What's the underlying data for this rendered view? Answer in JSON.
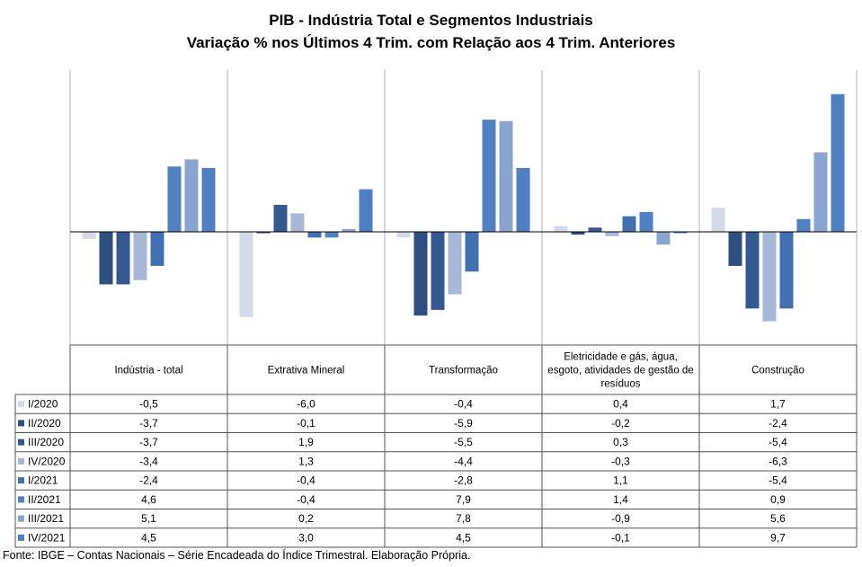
{
  "title": "PIB - Indústria Total e Segmentos Industriais",
  "subtitle": "Variação % nos Últimos 4 Trim. com Relação aos 4 Trim. Anteriores",
  "source": "Fonte: IBGE – Contas Nacionais – Série Encadeada do Índice Trimestral. Elaboração Própria.",
  "colors": [
    "#d5dae9",
    "#2f4f80",
    "#35598f",
    "#a7b7d7",
    "#4270b0",
    "#5181c1",
    "#8ba3cf",
    "#4f7fc0"
  ],
  "chart_data": {
    "type": "bar",
    "title": "PIB - Indústria Total e Segmentos Industriais",
    "subtitle": "Variação % nos Últimos 4 Trim. com Relação aos 4 Trim. Anteriores",
    "categories": [
      "Indústria - total",
      "Extrativa Mineral",
      "Transformação",
      "Eletricidade e gás, água, esgoto, atividades de gestão de resíduos",
      "Construção"
    ],
    "category_lines": [
      [
        "Indústria - total"
      ],
      [
        "Extrativa Mineral"
      ],
      [
        "Transformação"
      ],
      [
        "Eletricidade e gás, água,",
        "esgoto, atividades de gestão de",
        "resíduos"
      ],
      [
        "Construção"
      ]
    ],
    "series": [
      {
        "name": "I/2020",
        "values": [
          "-0,5",
          "-6,0",
          "-0,4",
          "0,4",
          "1,7"
        ]
      },
      {
        "name": "II/2020",
        "values": [
          "-3,7",
          "-0,1",
          "-5,9",
          "-0,2",
          "-2,4"
        ]
      },
      {
        "name": "III/2020",
        "values": [
          "-3,7",
          "1,9",
          "-5,5",
          "0,3",
          "-5,4"
        ]
      },
      {
        "name": "IV/2020",
        "values": [
          "-3,4",
          "1,3",
          "-4,4",
          "-0,3",
          "-6,3"
        ]
      },
      {
        "name": "I/2021",
        "values": [
          "-2,4",
          "-0,4",
          "-2,8",
          "1,1",
          "-5,4"
        ]
      },
      {
        "name": "II/2021",
        "values": [
          "4,6",
          "-0,4",
          "7,9",
          "1,4",
          "0,9"
        ]
      },
      {
        "name": "III/2021",
        "values": [
          "5,1",
          "0,2",
          "7,8",
          "-0,9",
          "5,6"
        ]
      },
      {
        "name": "IV/2021",
        "values": [
          "4,5",
          "3,0",
          "4,5",
          "-0,1",
          "9,7"
        ]
      }
    ],
    "ylim": [
      -8,
      11
    ],
    "grid": false,
    "legend": "data table below chart"
  }
}
